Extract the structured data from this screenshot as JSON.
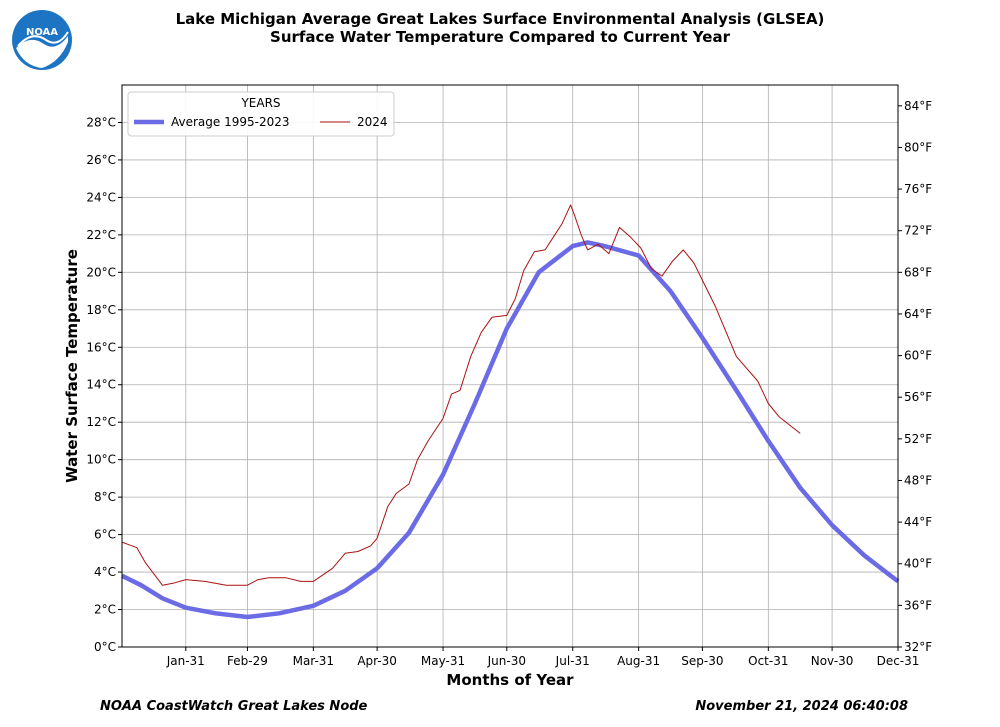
{
  "logo_text": "NOAA",
  "title": "Lake Michigan Average Great Lakes Surface Environmental Analysis (GLSEA)",
  "subtitle": "Surface Water Temperature Compared to Current Year",
  "footer_left": "NOAA CoastWatch Great Lakes Node",
  "footer_right": "November 21, 2024 06:40:08",
  "colors": {
    "average": "#6b6be6",
    "current": "#aa1111",
    "logo": "#1d74c3"
  },
  "chart_data": {
    "type": "line",
    "xlabel": "Months of Year",
    "ylabel": "Water Surface Temperature",
    "xlim": [
      1,
      366
    ],
    "ylim": [
      0,
      30
    ],
    "ylim_right_f": [
      32,
      86
    ],
    "grid": true,
    "legend": {
      "title": "YEARS",
      "placement": "top-left"
    },
    "x_ticks": [
      {
        "day": 31,
        "label": "Jan-31"
      },
      {
        "day": 60,
        "label": "Feb-29"
      },
      {
        "day": 91,
        "label": "Mar-31"
      },
      {
        "day": 121,
        "label": "Apr-30"
      },
      {
        "day": 152,
        "label": "May-31"
      },
      {
        "day": 182,
        "label": "Jun-30"
      },
      {
        "day": 213,
        "label": "Jul-31"
      },
      {
        "day": 244,
        "label": "Aug-31"
      },
      {
        "day": 274,
        "label": "Sep-30"
      },
      {
        "day": 305,
        "label": "Oct-31"
      },
      {
        "day": 335,
        "label": "Nov-30"
      },
      {
        "day": 366,
        "label": "Dec-31"
      }
    ],
    "y_ticks": [
      {
        "v": 0,
        "label": "0°C"
      },
      {
        "v": 2,
        "label": "2°C"
      },
      {
        "v": 4,
        "label": "4°C"
      },
      {
        "v": 6,
        "label": "6°C"
      },
      {
        "v": 8,
        "label": "8°C"
      },
      {
        "v": 10,
        "label": "10°C"
      },
      {
        "v": 12,
        "label": "12°C"
      },
      {
        "v": 14,
        "label": "14°C"
      },
      {
        "v": 16,
        "label": "16°C"
      },
      {
        "v": 18,
        "label": "18°C"
      },
      {
        "v": 20,
        "label": "20°C"
      },
      {
        "v": 22,
        "label": "22°C"
      },
      {
        "v": 24,
        "label": "24°C"
      },
      {
        "v": 26,
        "label": "26°C"
      },
      {
        "v": 28,
        "label": "28°C"
      }
    ],
    "y_ticks_right": [
      {
        "f": 32,
        "label": "32°F"
      },
      {
        "f": 36,
        "label": "36°F"
      },
      {
        "f": 40,
        "label": "40°F"
      },
      {
        "f": 44,
        "label": "44°F"
      },
      {
        "f": 48,
        "label": "48°F"
      },
      {
        "f": 52,
        "label": "52°F"
      },
      {
        "f": 56,
        "label": "56°F"
      },
      {
        "f": 60,
        "label": "60°F"
      },
      {
        "f": 64,
        "label": "64°F"
      },
      {
        "f": 68,
        "label": "68°F"
      },
      {
        "f": 72,
        "label": "72°F"
      },
      {
        "f": 76,
        "label": "76°F"
      },
      {
        "f": 80,
        "label": "80°F"
      },
      {
        "f": 84,
        "label": "84°F"
      }
    ],
    "series": [
      {
        "name": "Average 1995-2023",
        "x": [
          1,
          10,
          20,
          31,
          45,
          60,
          75,
          91,
          106,
          121,
          136,
          152,
          167,
          182,
          197,
          213,
          220,
          228,
          244,
          259,
          274,
          290,
          305,
          320,
          335,
          350,
          366
        ],
        "y": [
          3.8,
          3.3,
          2.6,
          2.1,
          1.8,
          1.6,
          1.8,
          2.2,
          3.0,
          4.2,
          6.1,
          9.2,
          13.0,
          17.0,
          20.0,
          21.4,
          21.6,
          21.4,
          20.9,
          19.0,
          16.5,
          13.7,
          11.0,
          8.5,
          6.5,
          4.9,
          3.5
        ]
      },
      {
        "name": "2024",
        "x": [
          1,
          8,
          12,
          20,
          25,
          31,
          40,
          50,
          60,
          65,
          70,
          78,
          85,
          91,
          100,
          106,
          112,
          118,
          121,
          126,
          130,
          136,
          140,
          145,
          152,
          156,
          160,
          165,
          170,
          175,
          182,
          186,
          190,
          195,
          200,
          204,
          208,
          212,
          214,
          217,
          220,
          225,
          230,
          235,
          240,
          245,
          250,
          255,
          260,
          265,
          270,
          280,
          290,
          300,
          305,
          310,
          320
        ],
        "y": [
          5.6,
          5.3,
          4.5,
          3.3,
          3.4,
          3.6,
          3.5,
          3.3,
          3.3,
          3.6,
          3.7,
          3.7,
          3.5,
          3.5,
          4.2,
          5.0,
          5.1,
          5.4,
          5.8,
          7.5,
          8.2,
          8.7,
          10.0,
          11.0,
          12.2,
          13.5,
          13.7,
          15.5,
          16.8,
          17.6,
          17.7,
          18.6,
          20.1,
          21.1,
          21.2,
          21.9,
          22.6,
          23.6,
          23.0,
          22.0,
          21.2,
          21.5,
          21.0,
          22.4,
          21.9,
          21.3,
          20.2,
          19.8,
          20.6,
          21.2,
          20.5,
          18.2,
          15.5,
          14.2,
          13.0,
          12.3,
          11.4
        ]
      }
    ]
  }
}
